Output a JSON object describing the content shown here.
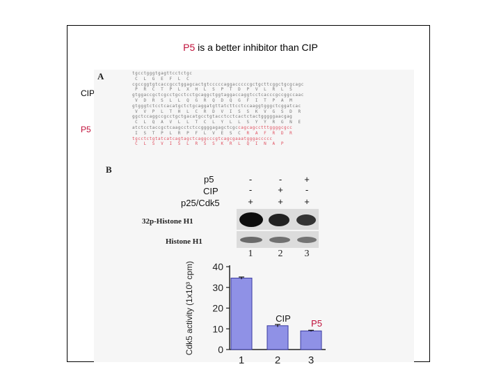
{
  "title": {
    "highlight": "P5",
    "rest": " is a better inhibitor than CIP"
  },
  "side_labels": {
    "cip": "CIP",
    "p5": "P5"
  },
  "figure": {
    "panel_a": "A",
    "panel_b": "B",
    "conditions": [
      {
        "label": "p5",
        "signs": [
          "-",
          "-",
          "+"
        ]
      },
      {
        "label": "CIP",
        "signs": [
          "-",
          "+",
          "-"
        ]
      },
      {
        "label": "p25/Cdk5",
        "signs": [
          "+",
          "+",
          "+"
        ]
      }
    ],
    "blot_labels": [
      "32p-Histone H1",
      "Histone H1"
    ],
    "blot_lanes": [
      "1",
      "2",
      "3"
    ],
    "colors": {
      "bar": "#8f91e6",
      "p5_red": "#c0103a"
    }
  },
  "chart_data": {
    "type": "bar",
    "categories": [
      "1",
      "2",
      "3"
    ],
    "values": [
      34.5,
      11.5,
      9
    ],
    "error": [
      0.5,
      0.6,
      0.3
    ],
    "ylabel": "Cdk5 activity (1x10³ cpm)",
    "ylim": [
      0,
      40
    ],
    "yticks": [
      0,
      10,
      20,
      30,
      40
    ],
    "annotations": [
      {
        "category": "2",
        "text": "CIP",
        "color": "#111111"
      },
      {
        "category": "3",
        "text": "P5",
        "color": "#c0103a"
      }
    ]
  }
}
